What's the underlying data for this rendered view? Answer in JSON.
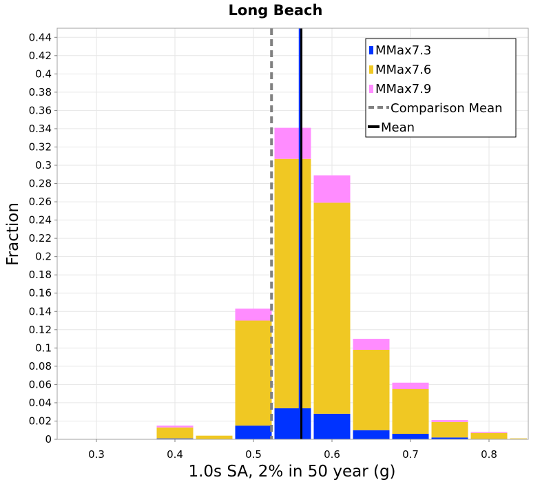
{
  "chart_data": {
    "type": "bar",
    "stacked": true,
    "title": "Long Beach",
    "xlabel": "1.0s SA, 2% in 50 year (g)",
    "ylabel": "Fraction",
    "xlim": [
      0.25,
      0.85
    ],
    "ylim": [
      0,
      0.45
    ],
    "xticks": [
      "0.3",
      "0.4",
      "0.5",
      "0.6",
      "0.7",
      "0.8"
    ],
    "yticks": [
      "0",
      "0.02",
      "0.04",
      "0.06",
      "0.08",
      "0.1",
      "0.12",
      "0.14",
      "0.16",
      "0.18",
      "0.2",
      "0.22",
      "0.24",
      "0.26",
      "0.28",
      "0.3",
      "0.32",
      "0.34",
      "0.36",
      "0.38",
      "0.4",
      "0.42",
      "0.44"
    ],
    "grid": true,
    "legend_position": "top-right",
    "bin_width": 0.05,
    "bin_centers": [
      0.3,
      0.35,
      0.4,
      0.45,
      0.5,
      0.55,
      0.6,
      0.65,
      0.7,
      0.75,
      0.8,
      0.85
    ],
    "series": [
      {
        "name": "MMax7.3",
        "color": "#0033ff",
        "values": [
          0,
          0,
          0.001,
          0.0,
          0.015,
          0.034,
          0.028,
          0.01,
          0.006,
          0.002,
          0.0005,
          0.0
        ]
      },
      {
        "name": "MMax7.6",
        "color": "#f0c823",
        "values": [
          0,
          0,
          0.012,
          0.004,
          0.115,
          0.273,
          0.231,
          0.088,
          0.049,
          0.017,
          0.0065,
          0.001
        ]
      },
      {
        "name": "MMax7.9",
        "color": "#ff8cff",
        "values": [
          0,
          0,
          0.002,
          0.0,
          0.013,
          0.034,
          0.03,
          0.012,
          0.007,
          0.002,
          0.001,
          0.0
        ]
      }
    ],
    "lines": [
      {
        "name": "Comparison Mean",
        "x": 0.523,
        "color": "#808080",
        "style": "dashed"
      },
      {
        "name": "MMax7.3 mean",
        "x": 0.559,
        "color": "#0033ff",
        "style": "solid"
      },
      {
        "name": "Mean",
        "x": 0.561,
        "color": "#000000",
        "style": "solid"
      }
    ],
    "legend": [
      {
        "label": "MMax7.3",
        "kind": "box",
        "color": "#0033ff"
      },
      {
        "label": "MMax7.6",
        "kind": "box",
        "color": "#f0c823"
      },
      {
        "label": "MMax7.9",
        "kind": "box",
        "color": "#ff8cff"
      },
      {
        "label": "Comparison Mean",
        "kind": "dash",
        "color": "#808080"
      },
      {
        "label": "Mean",
        "kind": "line",
        "color": "#000000"
      }
    ]
  }
}
